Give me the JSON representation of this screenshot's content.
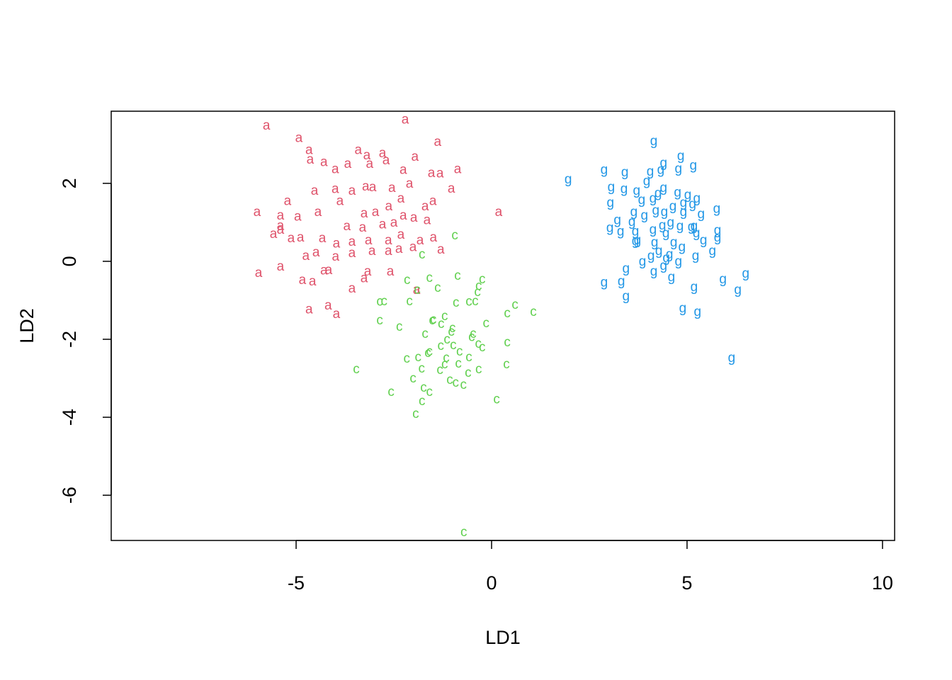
{
  "chart_data": {
    "type": "scatter",
    "xlabel": "LD1",
    "ylabel": "LD2",
    "xlim": [
      -9.73,
      10.31
    ],
    "ylim": [
      -7.16,
      3.85
    ],
    "xticks": [
      -5,
      0,
      5,
      10
    ],
    "yticks": [
      -6,
      -4,
      -2,
      0,
      2
    ],
    "grid": false,
    "series": [
      {
        "name": "a",
        "color": "#DF536B",
        "x": [
          -5.76,
          -4.93,
          -4.67,
          -4.64,
          -4.29,
          -4.0,
          -3.68,
          -3.41,
          -3.19,
          -3.12,
          -2.79,
          -2.7,
          -2.21,
          -1.96,
          -1.38,
          -0.87,
          -1.32,
          -1.54,
          -2.26,
          -2.1,
          -1.03,
          -1.5,
          -1.7,
          0.18,
          -6.0,
          -5.4,
          -5.22,
          -4.96,
          -4.44,
          -4.53,
          -4.0,
          -3.88,
          -3.57,
          -3.22,
          -3.04,
          -2.55,
          -2.32,
          -2.63,
          -2.97,
          -3.26,
          -3.7,
          -3.3,
          -2.79,
          -2.5,
          -2.26,
          -1.99,
          -1.65,
          -5.58,
          -5.13,
          -4.89,
          -4.33,
          -3.97,
          -3.57,
          -3.15,
          -2.64,
          -2.32,
          -1.83,
          -1.49,
          -1.3,
          -4.75,
          -4.49,
          -3.99,
          -3.57,
          -3.06,
          -2.64,
          -2.37,
          -2.01,
          -5.96,
          -5.4,
          -4.84,
          -4.58,
          -4.29,
          -4.17,
          -3.57,
          -3.26,
          -3.17,
          -2.59,
          -1.92,
          -4.67,
          -4.18,
          -3.97,
          -5.4,
          -5.4
        ],
        "y": [
          3.47,
          3.15,
          2.84,
          2.6,
          2.53,
          2.35,
          2.49,
          2.84,
          2.71,
          2.49,
          2.76,
          2.58,
          3.62,
          2.67,
          3.05,
          2.35,
          2.24,
          2.25,
          2.33,
          1.98,
          1.85,
          1.53,
          1.4,
          1.25,
          1.25,
          1.16,
          1.53,
          1.13,
          1.25,
          1.8,
          1.84,
          1.53,
          1.8,
          1.91,
          1.89,
          1.87,
          1.6,
          1.4,
          1.25,
          1.22,
          0.89,
          0.85,
          0.93,
          0.98,
          1.16,
          1.11,
          1.04,
          0.69,
          0.58,
          0.6,
          0.58,
          0.44,
          0.49,
          0.53,
          0.53,
          0.67,
          0.53,
          0.6,
          0.29,
          0.13,
          0.22,
          0.11,
          0.2,
          0.25,
          0.25,
          0.31,
          0.35,
          -0.31,
          -0.15,
          -0.49,
          -0.53,
          -0.25,
          -0.24,
          -0.71,
          -0.45,
          -0.27,
          -0.27,
          -0.75,
          -1.25,
          -1.15,
          -1.36,
          0.9,
          0.8
        ]
      },
      {
        "name": "c",
        "color": "#61D04F",
        "x": [
          -0.94,
          -1.78,
          -2.16,
          -1.59,
          -1.38,
          -1.9,
          -0.87,
          -0.24,
          -0.33,
          -0.36,
          -2.86,
          -2.75,
          -2.1,
          -0.91,
          -0.58,
          -0.42,
          0.6,
          0.4,
          1.07,
          -1.2,
          -1.49,
          -1.52,
          -1.29,
          -2.86,
          -2.36,
          -1.7,
          -1.0,
          -0.14,
          -1.03,
          -0.47,
          -0.51,
          -1.14,
          -1.3,
          -0.98,
          -1.59,
          -0.34,
          -0.24,
          0.4,
          -3.46,
          -2.17,
          -1.88,
          -1.63,
          -1.16,
          -0.82,
          -0.58,
          -1.2,
          -0.85,
          -1.32,
          -1.79,
          -2.01,
          -1.74,
          -1.59,
          -1.07,
          -0.92,
          -0.72,
          -0.6,
          -0.33,
          0.38,
          -2.57,
          -1.78,
          -1.94,
          0.13,
          -0.71
        ],
        "y": [
          0.65,
          0.16,
          -0.49,
          -0.44,
          -0.69,
          -0.75,
          -0.38,
          -0.47,
          -0.65,
          -0.8,
          -1.05,
          -1.04,
          -1.04,
          -1.07,
          -1.05,
          -1.04,
          -1.13,
          -1.35,
          -1.31,
          -1.42,
          -1.51,
          -1.53,
          -1.62,
          -1.53,
          -1.69,
          -1.87,
          -1.73,
          -1.6,
          -1.82,
          -1.87,
          -1.95,
          -2.02,
          -2.18,
          -2.16,
          -2.33,
          -2.13,
          -2.22,
          -2.09,
          -2.78,
          -2.51,
          -2.47,
          -2.36,
          -2.49,
          -2.33,
          -2.47,
          -2.65,
          -2.64,
          -2.8,
          -2.76,
          -3.02,
          -3.25,
          -3.36,
          -3.05,
          -3.13,
          -3.18,
          -2.87,
          -2.78,
          -2.65,
          -3.36,
          -3.6,
          -3.93,
          -3.55,
          -6.96
        ]
      },
      {
        "name": "g",
        "color": "#2297E6",
        "x": [
          1.96,
          2.88,
          3.41,
          3.97,
          4.06,
          4.33,
          4.4,
          4.15,
          4.84,
          5.16,
          4.78,
          5.76,
          6.5,
          6.3,
          5.92,
          5.27,
          4.89,
          6.14,
          5.18,
          4.6,
          4.4,
          4.15,
          3.86,
          3.44,
          3.32,
          2.88,
          3.44,
          3.06,
          3.39,
          3.71,
          3.04,
          3.22,
          3.64,
          3.84,
          4.13,
          4.26,
          4.4,
          4.76,
          5.02,
          5.25,
          5.36,
          5.14,
          4.91,
          4.64,
          4.42,
          4.2,
          3.91,
          3.03,
          3.3,
          3.68,
          3.73,
          4.13,
          4.37,
          4.58,
          4.82,
          5.11,
          5.24,
          5.42,
          5.78,
          5.65,
          5.22,
          4.87,
          4.55,
          4.28,
          4.08,
          4.78,
          4.47,
          4.17,
          3.59,
          4.91,
          5.18,
          4.46,
          5.78,
          3.68,
          4.66
        ],
        "y": [
          2.09,
          2.33,
          2.27,
          2.04,
          2.29,
          2.33,
          2.51,
          3.07,
          2.69,
          2.44,
          2.36,
          1.33,
          -0.33,
          -0.75,
          -0.47,
          -1.31,
          -1.22,
          -2.49,
          -0.67,
          -0.42,
          -0.13,
          -0.27,
          -0.02,
          -0.2,
          -0.53,
          -0.56,
          -0.91,
          1.89,
          1.84,
          1.8,
          1.49,
          1.04,
          1.25,
          1.56,
          1.6,
          1.73,
          1.87,
          1.75,
          1.69,
          1.6,
          1.2,
          1.45,
          1.25,
          1.4,
          1.25,
          1.29,
          1.16,
          0.84,
          0.75,
          0.75,
          0.53,
          0.8,
          0.91,
          0.98,
          0.89,
          0.87,
          0.71,
          0.53,
          0.78,
          0.25,
          0.13,
          0.35,
          0.16,
          0.25,
          0.13,
          -0.02,
          0.07,
          0.47,
          1.0,
          1.49,
          0.89,
          0.71,
          0.6,
          0.51,
          0.47
        ]
      }
    ]
  }
}
